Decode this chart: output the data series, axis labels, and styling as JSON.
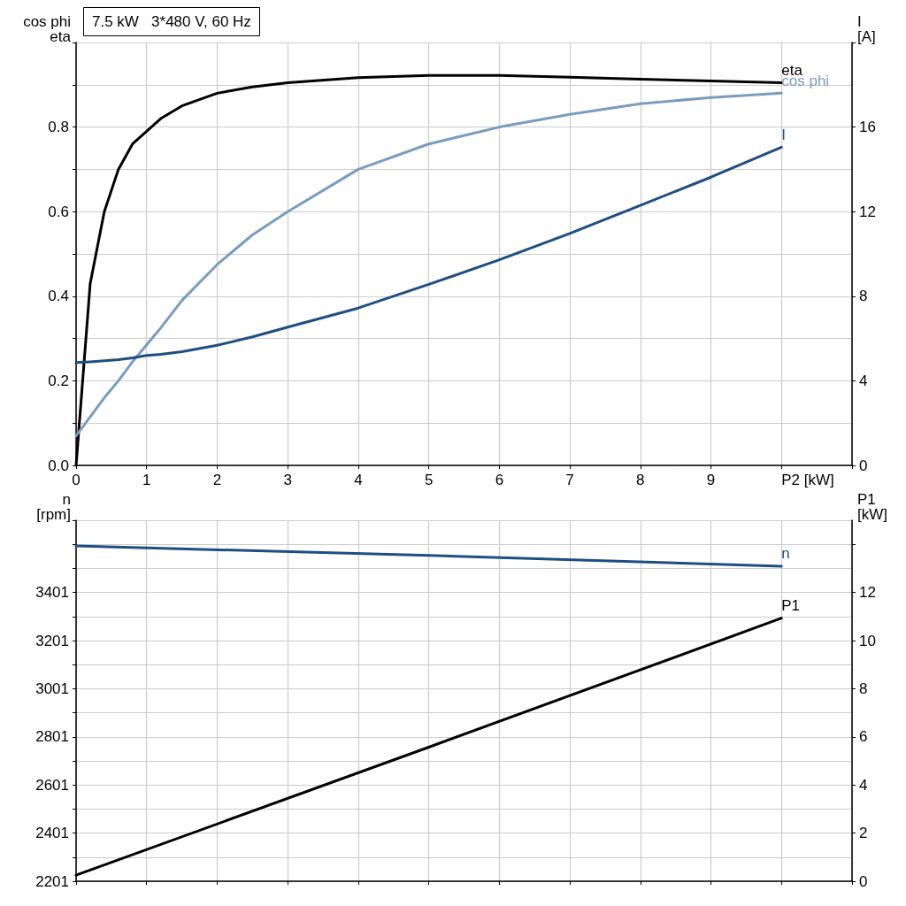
{
  "chart_data": [
    {
      "type": "line",
      "title": "7.5 kW   3*480 V, 60 Hz",
      "xlabel": "P2 [kW]",
      "ylabel": "cos phi\neta",
      "y2label": "I\n[A]",
      "x": [
        0,
        0.2,
        0.4,
        0.6,
        0.8,
        1,
        1.2,
        1.5,
        2,
        2.5,
        3,
        4,
        5,
        6,
        7,
        8,
        9,
        10
      ],
      "series": [
        {
          "name": "eta",
          "color": "#000000",
          "values": [
            0,
            0.43,
            0.6,
            0.7,
            0.76,
            0.79,
            0.82,
            0.85,
            0.88,
            0.895,
            0.905,
            0.917,
            0.922,
            0.922,
            0.918,
            0.913,
            0.909,
            0.905
          ]
        },
        {
          "name": "cos phi",
          "color": "#7a9cbf",
          "values": [
            0.07,
            0.115,
            0.16,
            0.2,
            0.245,
            0.285,
            0.325,
            0.39,
            0.475,
            0.545,
            0.6,
            0.7,
            0.76,
            0.8,
            0.83,
            0.855,
            0.87,
            0.88
          ]
        },
        {
          "name": "I",
          "color": "#1f4e82",
          "axis": "y2",
          "values": [
            4.86,
            4.9,
            4.95,
            5.0,
            5.08,
            5.2,
            5.25,
            5.38,
            5.68,
            6.08,
            6.54,
            7.44,
            8.56,
            9.72,
            10.97,
            12.3,
            13.63,
            15.05
          ]
        }
      ],
      "xlim": [
        0,
        11
      ],
      "xticks": [
        0,
        1,
        2,
        3,
        4,
        5,
        6,
        7,
        8,
        9,
        {
          "value": 10,
          "label": null
        },
        {
          "value": 11,
          "label": null
        }
      ],
      "ylim": [
        0,
        1
      ],
      "yticks": [
        {
          "value": 0,
          "label": "0.0"
        },
        {
          "value": 0.1,
          "label": null
        },
        {
          "value": 0.2,
          "label": "0.2"
        },
        {
          "value": 0.3,
          "label": null
        },
        {
          "value": 0.4,
          "label": "0.4"
        },
        {
          "value": 0.5,
          "label": null
        },
        {
          "value": 0.6,
          "label": "0.6"
        },
        {
          "value": 0.7,
          "label": null
        },
        {
          "value": 0.8,
          "label": "0.8"
        },
        {
          "value": 0.9,
          "label": null
        },
        {
          "value": 1,
          "label": null
        }
      ],
      "y2lim": [
        0,
        20
      ],
      "y2ticks": [
        0,
        4,
        8,
        12,
        16,
        {
          "value": 20,
          "label": null
        }
      ],
      "grid": true,
      "legend": false,
      "marker": "none",
      "line_style": "solid"
    },
    {
      "type": "line",
      "ylabel": "n\n[rpm]",
      "y2label": "P1\n[kW]",
      "x": [
        0,
        5,
        10
      ],
      "series": [
        {
          "name": "n",
          "color": "#1f4e82",
          "values": [
            3594,
            3555,
            3510
          ]
        },
        {
          "name": "P1",
          "color": "#000000",
          "axis": "y2",
          "values": [
            0.25,
            5.57,
            10.93
          ]
        }
      ],
      "xlim": [
        0,
        11
      ],
      "xticks": [
        0,
        1,
        2,
        3,
        4,
        5,
        6,
        7,
        8,
        9,
        10,
        11
      ],
      "ylim": [
        2201,
        3701
      ],
      "yticks": [
        2201,
        {
          "value": 2301,
          "label": null
        },
        2401,
        {
          "value": 2501,
          "label": null
        },
        2601,
        {
          "value": 2701,
          "label": null
        },
        2801,
        {
          "value": 2901,
          "label": null
        },
        3001,
        {
          "value": 3101,
          "label": null
        },
        3201,
        {
          "value": 3301,
          "label": null
        },
        3401,
        {
          "value": 3501,
          "label": null
        },
        {
          "value": 3601,
          "label": null
        },
        {
          "value": 3701,
          "label": null
        }
      ],
      "y2lim": [
        0,
        15
      ],
      "y2ticks": [
        0,
        2,
        4,
        6,
        8,
        10,
        12,
        {
          "value": 14,
          "label": null
        }
      ],
      "tick_labels": "y",
      "grid": true,
      "legend": false,
      "marker": "none",
      "line_style": "solid"
    }
  ]
}
